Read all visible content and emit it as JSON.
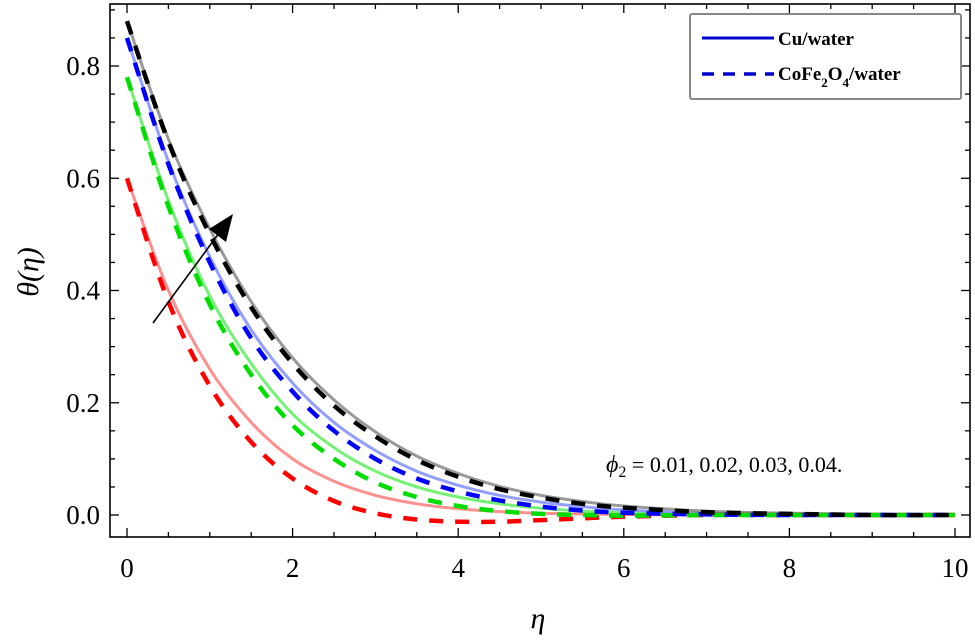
{
  "chart_data": {
    "type": "line",
    "title": "",
    "xlabel": "η",
    "ylabel": "θ(η)",
    "xlim": [
      0,
      10
    ],
    "ylim": [
      -0.04,
      0.92
    ],
    "grid": false,
    "x_ticks": [
      0,
      2,
      4,
      6,
      8,
      10
    ],
    "x_tick_labels": [
      "0",
      "2",
      "4",
      "6",
      "8",
      "10"
    ],
    "y_ticks": [
      0.0,
      0.2,
      0.4,
      0.6,
      0.8
    ],
    "y_tick_labels": [
      "0.0",
      "0.2",
      "0.4",
      "0.6",
      "0.8"
    ],
    "legend": {
      "position": "top-right",
      "entries": [
        {
          "label": "Cu/water",
          "style": "solid",
          "color": "#0000cc"
        },
        {
          "label_main": "CoFe",
          "sub1": "2",
          "mid": "O",
          "sub2": "4",
          "tail": "/water",
          "label": "CoFe2O4/water",
          "style": "dashed",
          "color": "#0000cc"
        }
      ]
    },
    "annotation": {
      "text_symbol": "ϕ",
      "text_sub": "2",
      "text_rest": " = 0.01, 0.02, 0.03, 0.04.",
      "arrow": "increasing φ2 direction (lower-left to upper-right)"
    },
    "x": [
      0,
      0.5,
      1,
      1.5,
      2,
      2.5,
      3,
      3.5,
      4,
      4.5,
      5,
      5.5,
      6,
      7,
      8,
      9,
      10
    ],
    "series": [
      {
        "name": "Cu/water φ2=0.01",
        "color": "#ff6b6b",
        "style": "solid",
        "values": [
          0.6,
          0.4,
          0.26,
          0.165,
          0.1,
          0.06,
          0.035,
          0.02,
          0.011,
          0.006,
          0.003,
          0.002,
          0.001,
          0.0,
          0.0,
          0.0,
          0.0
        ]
      },
      {
        "name": "CoFe2O4/water φ2=0.01",
        "color": "#ff0000",
        "style": "dashed",
        "values": [
          0.6,
          0.38,
          0.23,
          0.13,
          0.065,
          0.025,
          0.003,
          -0.008,
          -0.012,
          -0.012,
          -0.009,
          -0.006,
          -0.003,
          0.0,
          0.0,
          0.0,
          0.0
        ]
      },
      {
        "name": "Cu/water φ2=0.02",
        "color": "#44ee44",
        "style": "solid",
        "values": [
          0.78,
          0.56,
          0.39,
          0.27,
          0.18,
          0.12,
          0.078,
          0.05,
          0.032,
          0.02,
          0.012,
          0.007,
          0.004,
          0.001,
          0.0,
          0.0,
          0.0
        ]
      },
      {
        "name": "CoFe2O4/water φ2=0.02",
        "color": "#00dd00",
        "style": "dashed",
        "values": [
          0.78,
          0.55,
          0.375,
          0.25,
          0.16,
          0.1,
          0.058,
          0.032,
          0.016,
          0.007,
          0.002,
          0.0,
          -0.001,
          0.0,
          0.0,
          0.0,
          0.0
        ]
      },
      {
        "name": "Cu/water φ2=0.03",
        "color": "#6f7fff",
        "style": "solid",
        "values": [
          0.85,
          0.63,
          0.46,
          0.33,
          0.235,
          0.165,
          0.115,
          0.078,
          0.053,
          0.035,
          0.023,
          0.015,
          0.009,
          0.003,
          0.001,
          0.0,
          0.0
        ]
      },
      {
        "name": "CoFe2O4/water φ2=0.03",
        "color": "#0000ff",
        "style": "dashed",
        "values": [
          0.85,
          0.625,
          0.45,
          0.315,
          0.22,
          0.15,
          0.1,
          0.065,
          0.042,
          0.026,
          0.015,
          0.008,
          0.004,
          0.001,
          0.0,
          0.0,
          0.0
        ]
      },
      {
        "name": "Cu/water φ2=0.04",
        "color": "#777777",
        "style": "solid",
        "values": [
          0.88,
          0.67,
          0.51,
          0.38,
          0.28,
          0.205,
          0.148,
          0.105,
          0.074,
          0.051,
          0.035,
          0.024,
          0.016,
          0.007,
          0.003,
          0.001,
          0.0
        ]
      },
      {
        "name": "CoFe2O4/water φ2=0.04",
        "color": "#000000",
        "style": "dashed",
        "values": [
          0.88,
          0.665,
          0.5,
          0.37,
          0.27,
          0.195,
          0.14,
          0.098,
          0.068,
          0.046,
          0.031,
          0.02,
          0.013,
          0.005,
          0.002,
          0.0,
          0.0
        ]
      }
    ]
  }
}
